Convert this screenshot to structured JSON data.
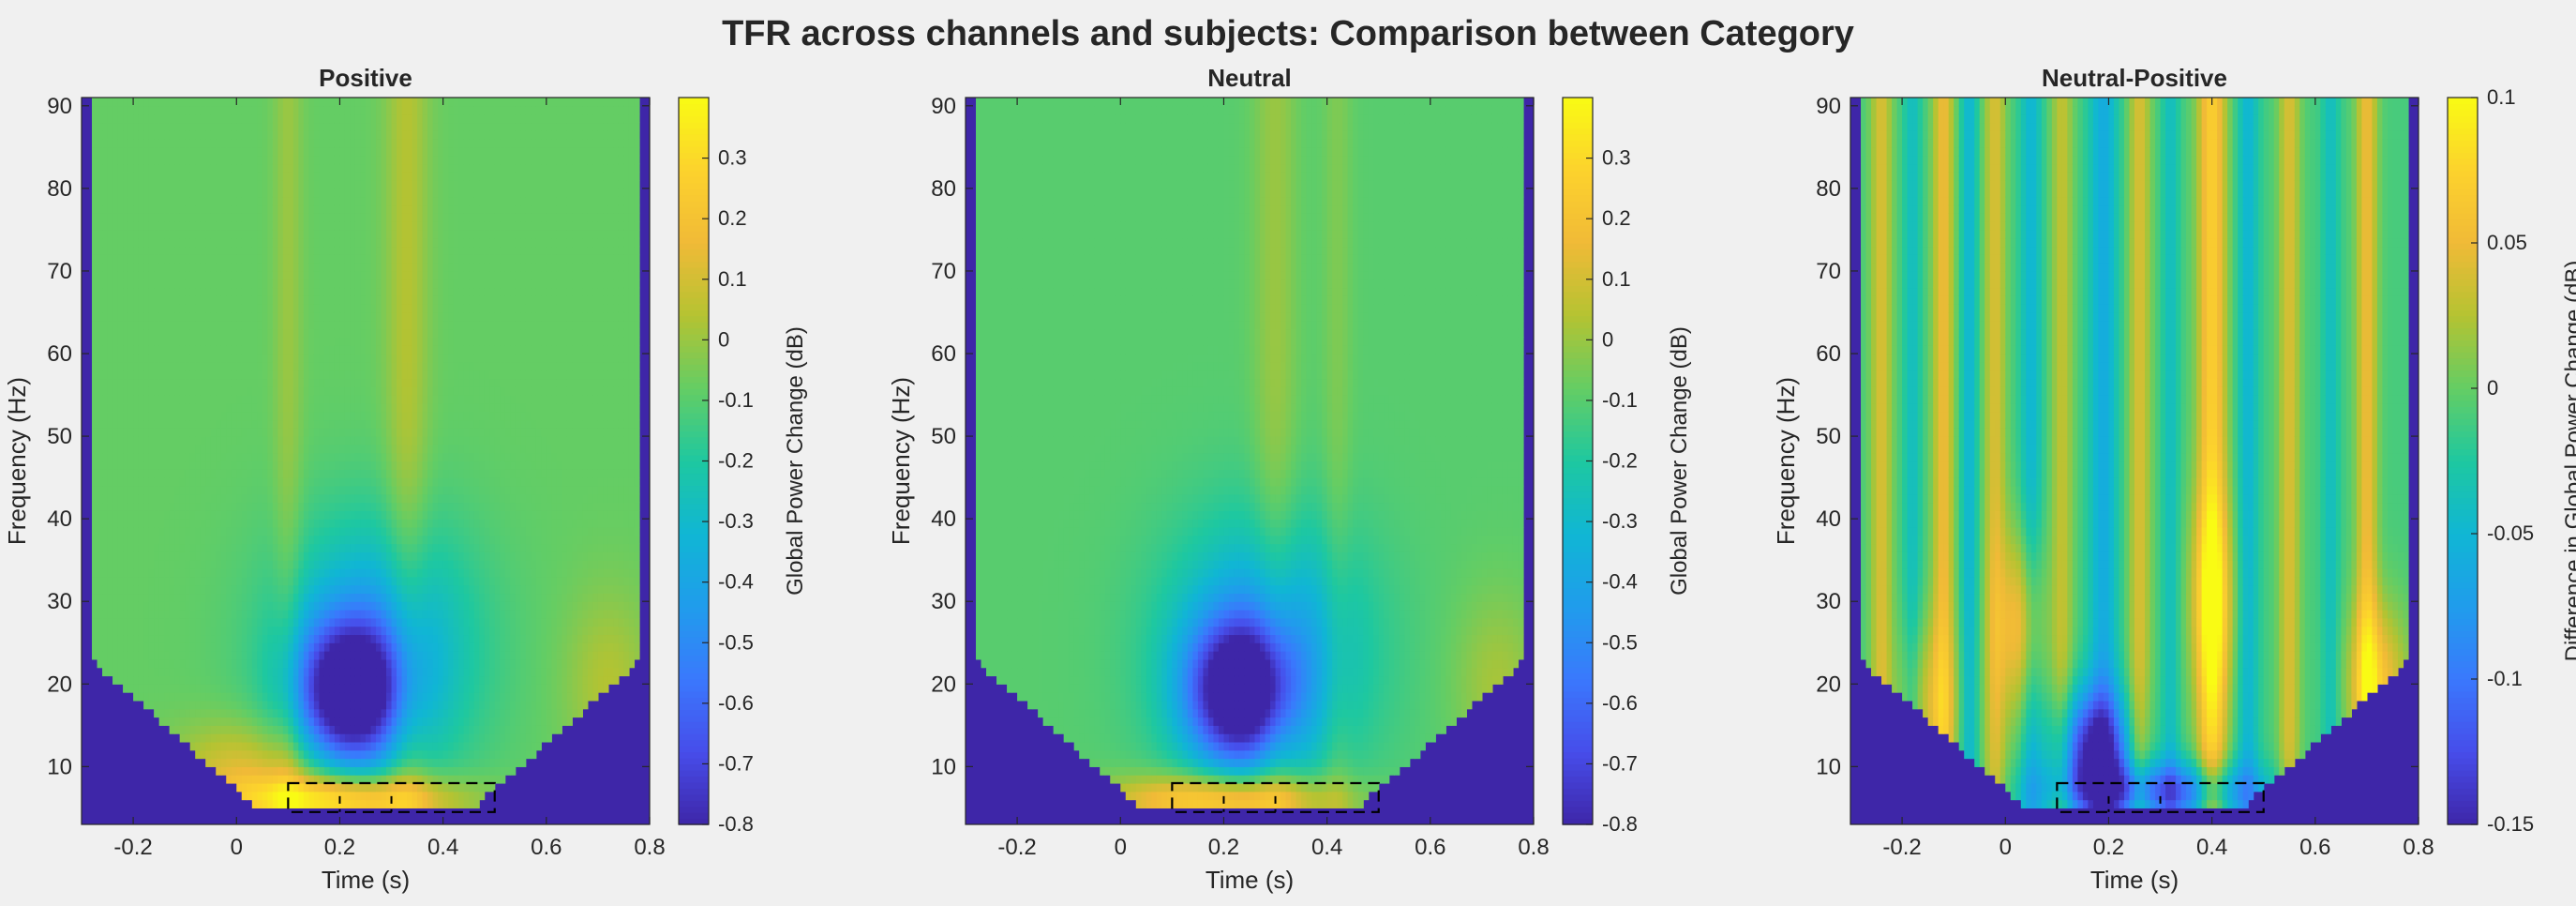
{
  "chart_data": {
    "type": "heatmap",
    "title": "TFR across channels and subjects: Comparison between Category",
    "panels": [
      {
        "id": "positive",
        "title": "Positive",
        "xlabel": "Time (s)",
        "ylabel": "Frequency (Hz)",
        "xlim": [
          -0.3,
          0.8
        ],
        "ylim": [
          3,
          91
        ],
        "xticks": [
          -0.2,
          0,
          0.2,
          0.4,
          0.6,
          0.8
        ],
        "yticks": [
          10,
          20,
          30,
          40,
          50,
          60,
          70,
          80,
          90
        ],
        "colorbar": {
          "label": "Global Power Change (dB)",
          "clim": [
            -0.8,
            0.4
          ],
          "ticks": [
            -0.8,
            -0.7,
            -0.6,
            -0.5,
            -0.4,
            -0.3,
            -0.2,
            -0.1,
            0,
            0.1,
            0.2,
            0.3
          ]
        },
        "field": {
          "baseline": -0.08,
          "features": [
            {
              "kind": "blob",
              "time": 0.22,
              "freq": 19,
              "t_sd": 0.07,
              "f_sd": 6,
              "value": -0.75
            },
            {
              "kind": "blob",
              "time": 0.27,
              "freq": 24,
              "t_sd": 0.13,
              "f_sd": 11,
              "value": -0.35
            },
            {
              "kind": "blob",
              "time": 0.2,
              "freq": 6,
              "t_sd": 0.15,
              "f_sd": 2.2,
              "value": 0.5
            },
            {
              "kind": "blob",
              "time": 0.02,
              "freq": 10,
              "t_sd": 0.1,
              "f_sd": 4,
              "value": 0.2
            },
            {
              "kind": "blob",
              "time": 0.72,
              "freq": 20,
              "t_sd": 0.06,
              "f_sd": 8,
              "value": 0.12
            },
            {
              "kind": "stripe",
              "time": 0.1,
              "t_sd": 0.02,
              "value": 0.08
            },
            {
              "kind": "stripe",
              "time": 0.33,
              "t_sd": 0.03,
              "value": 0.12
            }
          ]
        },
        "cluster_box": {
          "t0": 0.1,
          "t1": 0.5,
          "f0": 4.5,
          "f1": 8
        }
      },
      {
        "id": "neutral",
        "title": "Neutral",
        "xlabel": "Time (s)",
        "ylabel": "Frequency (Hz)",
        "xlim": [
          -0.3,
          0.8
        ],
        "ylim": [
          3,
          91
        ],
        "xticks": [
          -0.2,
          0,
          0.2,
          0.4,
          0.6,
          0.8
        ],
        "yticks": [
          10,
          20,
          30,
          40,
          50,
          60,
          70,
          80,
          90
        ],
        "colorbar": {
          "label": "Global Power Change (dB)",
          "clim": [
            -0.8,
            0.4
          ],
          "ticks": [
            -0.8,
            -0.7,
            -0.6,
            -0.5,
            -0.4,
            -0.3,
            -0.2,
            -0.1,
            0,
            0.1,
            0.2,
            0.3
          ]
        },
        "field": {
          "baseline": -0.1,
          "features": [
            {
              "kind": "blob",
              "time": 0.23,
              "freq": 19,
              "t_sd": 0.07,
              "f_sd": 6,
              "value": -0.72
            },
            {
              "kind": "blob",
              "time": 0.28,
              "freq": 24,
              "t_sd": 0.13,
              "f_sd": 11,
              "value": -0.35
            },
            {
              "kind": "blob",
              "time": 0.2,
              "freq": 6,
              "t_sd": 0.15,
              "f_sd": 2.2,
              "value": 0.45
            },
            {
              "kind": "blob",
              "time": 0.73,
              "freq": 20,
              "t_sd": 0.06,
              "f_sd": 8,
              "value": 0.12
            },
            {
              "kind": "stripe",
              "time": 0.3,
              "t_sd": 0.03,
              "value": 0.1
            },
            {
              "kind": "stripe",
              "time": 0.42,
              "t_sd": 0.02,
              "value": 0.06
            }
          ]
        },
        "cluster_box": {
          "t0": 0.1,
          "t1": 0.5,
          "f0": 4.5,
          "f1": 8
        }
      },
      {
        "id": "neutral-positive",
        "title": "Neutral-Positive",
        "xlabel": "Time (s)",
        "ylabel": "Frequency (Hz)",
        "xlim": [
          -0.3,
          0.8
        ],
        "ylim": [
          3,
          91
        ],
        "xticks": [
          -0.2,
          0,
          0.2,
          0.4,
          0.6,
          0.8
        ],
        "yticks": [
          10,
          20,
          30,
          40,
          50,
          60,
          70,
          80,
          90
        ],
        "colorbar": {
          "label": "Difference in Global Power Change (dB)",
          "clim": [
            -0.15,
            0.1
          ],
          "ticks": [
            -0.15,
            -0.1,
            -0.05,
            0,
            0.05,
            0.1
          ]
        },
        "field": {
          "baseline": -0.01,
          "features": [
            {
              "kind": "stripe",
              "time": -0.24,
              "t_sd": 0.015,
              "value": 0.05
            },
            {
              "kind": "stripe",
              "time": -0.18,
              "t_sd": 0.012,
              "value": -0.03
            },
            {
              "kind": "stripe",
              "time": -0.12,
              "t_sd": 0.015,
              "value": 0.06
            },
            {
              "kind": "stripe",
              "time": -0.07,
              "t_sd": 0.012,
              "value": -0.04
            },
            {
              "kind": "stripe",
              "time": -0.02,
              "t_sd": 0.015,
              "value": 0.05
            },
            {
              "kind": "stripe",
              "time": 0.05,
              "t_sd": 0.015,
              "value": -0.04
            },
            {
              "kind": "stripe",
              "time": 0.11,
              "t_sd": 0.015,
              "value": 0.04
            },
            {
              "kind": "stripe",
              "time": 0.19,
              "t_sd": 0.02,
              "value": -0.05
            },
            {
              "kind": "stripe",
              "time": 0.26,
              "t_sd": 0.015,
              "value": 0.05
            },
            {
              "kind": "stripe",
              "time": 0.32,
              "t_sd": 0.012,
              "value": -0.03
            },
            {
              "kind": "stripe",
              "time": 0.4,
              "t_sd": 0.02,
              "value": 0.08
            },
            {
              "kind": "stripe",
              "time": 0.47,
              "t_sd": 0.015,
              "value": -0.04
            },
            {
              "kind": "stripe",
              "time": 0.55,
              "t_sd": 0.015,
              "value": 0.05
            },
            {
              "kind": "stripe",
              "time": 0.63,
              "t_sd": 0.012,
              "value": -0.03
            },
            {
              "kind": "stripe",
              "time": 0.7,
              "t_sd": 0.015,
              "value": 0.06
            },
            {
              "kind": "blob",
              "time": 0.17,
              "freq": 12,
              "t_sd": 0.05,
              "f_sd": 5,
              "value": -0.13
            },
            {
              "kind": "blob",
              "time": 0.3,
              "freq": 7,
              "t_sd": 0.14,
              "f_sd": 2.5,
              "value": -0.1
            },
            {
              "kind": "blob",
              "time": 0.03,
              "freq": 27,
              "t_sd": 0.03,
              "f_sd": 8,
              "value": 0.07
            },
            {
              "kind": "blob",
              "time": 0.4,
              "freq": 30,
              "t_sd": 0.03,
              "f_sd": 9,
              "value": 0.06
            },
            {
              "kind": "blob",
              "time": 0.72,
              "freq": 20,
              "t_sd": 0.04,
              "f_sd": 7,
              "value": 0.07
            },
            {
              "kind": "blob",
              "time": -0.15,
              "freq": 18,
              "t_sd": 0.04,
              "f_sd": 7,
              "value": 0.04
            }
          ]
        },
        "cluster_box": {
          "t0": 0.1,
          "t1": 0.5,
          "f0": 4.5,
          "f1": 8
        }
      }
    ]
  }
}
